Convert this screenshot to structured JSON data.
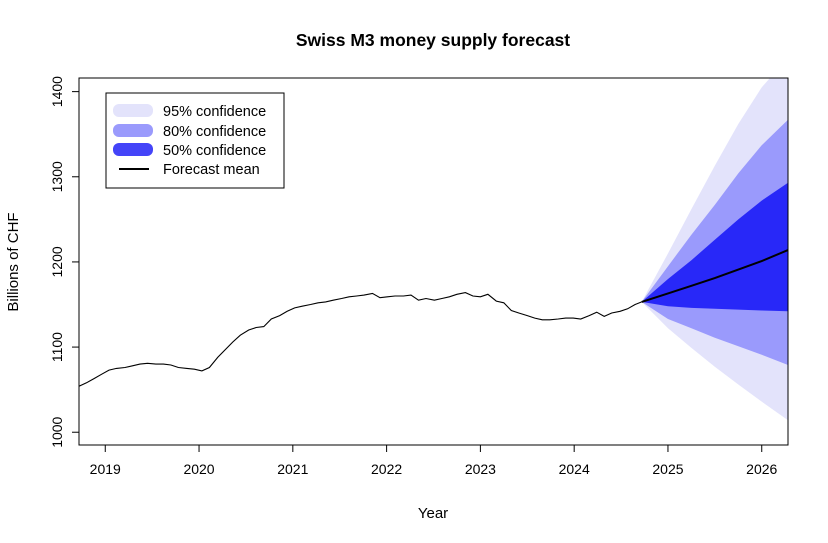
{
  "chart_data": {
    "type": "line",
    "title": "Swiss M3 money supply forecast",
    "xlabel": "Year",
    "ylabel": "Billions of CHF",
    "xlim": [
      2018.72,
      2026.28
    ],
    "ylim": [
      985,
      1416
    ],
    "x_ticks": [
      2019,
      2020,
      2021,
      2022,
      2023,
      2024,
      2025,
      2026
    ],
    "y_ticks": [
      1000,
      1100,
      1200,
      1300,
      1400
    ],
    "legend": {
      "placement": "top-left",
      "entries": [
        {
          "label": "95% confidence",
          "color": "#e3e3fb",
          "kind": "band"
        },
        {
          "label": "80% confidence",
          "color": "#9a9afc",
          "kind": "band"
        },
        {
          "label": "50% confidence",
          "color": "#4444f8",
          "kind": "band"
        },
        {
          "label": "Forecast mean",
          "color": "#000000",
          "kind": "line"
        }
      ]
    },
    "history": {
      "name": "Observed",
      "x": [
        2018.72,
        2018.8,
        2018.88,
        2018.96,
        2019.04,
        2019.12,
        2019.21,
        2019.29,
        2019.37,
        2019.45,
        2019.54,
        2019.62,
        2019.7,
        2019.78,
        2019.87,
        2019.95,
        2020.03,
        2020.11,
        2020.2,
        2020.28,
        2020.36,
        2020.44,
        2020.53,
        2020.61,
        2020.69,
        2020.77,
        2020.86,
        2020.94,
        2021.02,
        2021.1,
        2021.19,
        2021.27,
        2021.35,
        2021.43,
        2021.52,
        2021.6,
        2021.68,
        2021.76,
        2021.85,
        2021.93,
        2022.01,
        2022.09,
        2022.18,
        2022.26,
        2022.34,
        2022.42,
        2022.51,
        2022.59,
        2022.67,
        2022.75,
        2022.84,
        2022.92,
        2023.0,
        2023.08,
        2023.17,
        2023.25,
        2023.33,
        2023.41,
        2023.5,
        2023.58,
        2023.66,
        2023.74,
        2023.83,
        2023.91,
        2023.99,
        2024.07,
        2024.16,
        2024.24,
        2024.32,
        2024.4,
        2024.49,
        2024.57,
        2024.65,
        2024.72
      ],
      "y": [
        1054,
        1058,
        1063,
        1068,
        1073,
        1075,
        1076,
        1078,
        1080,
        1081,
        1080,
        1080,
        1079,
        1076,
        1075,
        1074,
        1072,
        1076,
        1088,
        1097,
        1106,
        1114,
        1120,
        1123,
        1124,
        1133,
        1137,
        1142,
        1146,
        1148,
        1150,
        1152,
        1153,
        1155,
        1157,
        1159,
        1160,
        1161,
        1163,
        1158,
        1159,
        1160,
        1160,
        1161,
        1155,
        1157,
        1155,
        1157,
        1159,
        1162,
        1164,
        1160,
        1159,
        1162,
        1154,
        1152,
        1143,
        1140,
        1137,
        1134,
        1132,
        1132,
        1133,
        1134,
        1134,
        1133,
        1137,
        1141,
        1136,
        1140,
        1142,
        1145,
        1150,
        1153
      ]
    },
    "forecast": {
      "x": [
        2024.72,
        2025.0,
        2025.25,
        2025.5,
        2025.75,
        2026.0,
        2026.28
      ],
      "mean": [
        1153,
        1163,
        1172,
        1181,
        1191,
        1201,
        1214
      ],
      "lo50": [
        1153,
        1148,
        1146,
        1145,
        1144,
        1143,
        1142
      ],
      "hi50": [
        1153,
        1180,
        1202,
        1226,
        1250,
        1272,
        1293
      ],
      "lo80": [
        1153,
        1133,
        1122,
        1111,
        1101,
        1091,
        1079
      ],
      "hi80": [
        1153,
        1195,
        1232,
        1267,
        1304,
        1337,
        1367
      ],
      "lo95": [
        1153,
        1122,
        1099,
        1077,
        1056,
        1036,
        1014
      ],
      "hi95": [
        1153,
        1210,
        1262,
        1313,
        1362,
        1405,
        1440
      ]
    }
  }
}
